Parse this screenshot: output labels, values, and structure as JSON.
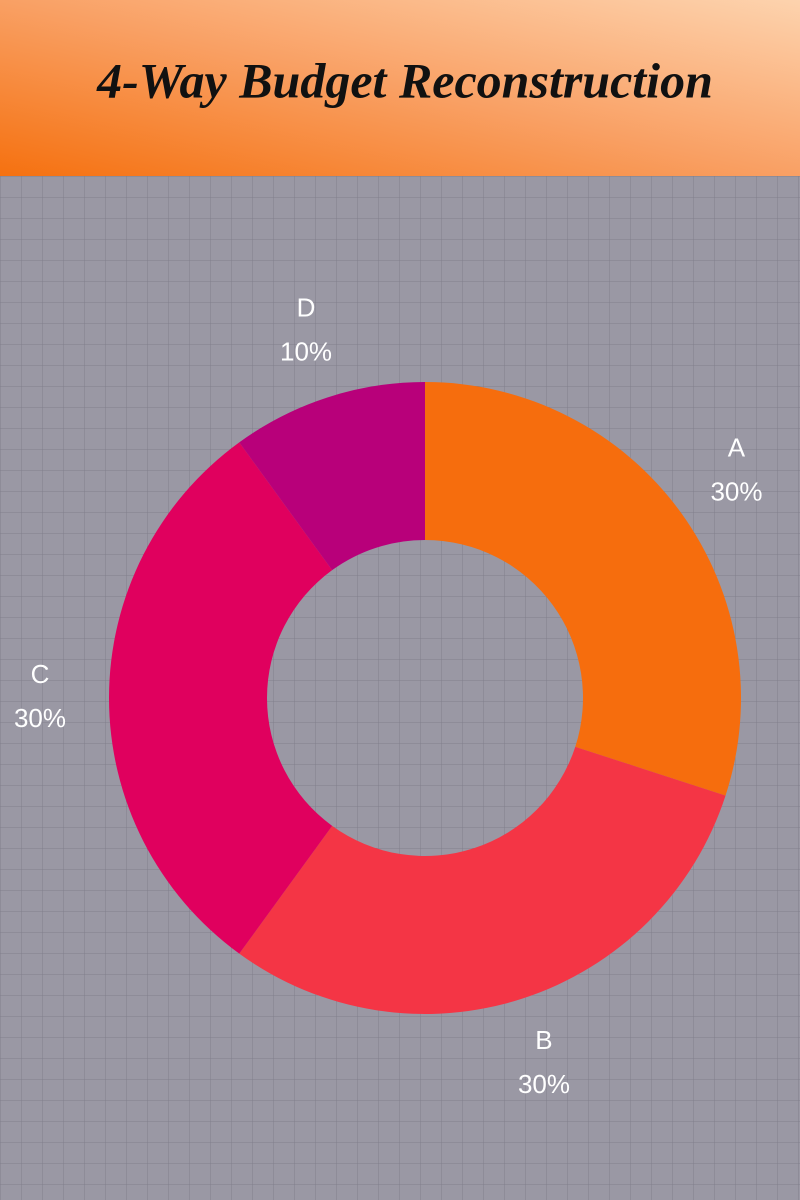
{
  "chart_data": {
    "type": "pie",
    "title": "4-Way Budget Reconstruction",
    "categories": [
      "A",
      "B",
      "C",
      "D"
    ],
    "values": [
      30,
      30,
      30,
      10
    ],
    "value_labels": [
      "30%",
      "30%",
      "30%",
      "10%"
    ],
    "colors": [
      "#f66d0d",
      "#f43545",
      "#e0005e",
      "#b8007a"
    ]
  }
}
